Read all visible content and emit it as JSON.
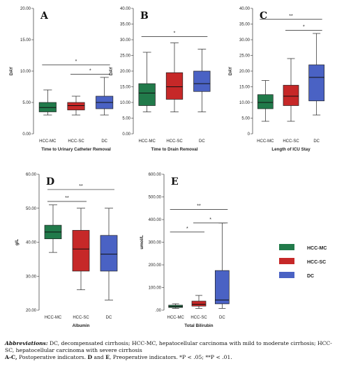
{
  "colors": {
    "HCC-MC": "#217a4a",
    "HCC-SC": "#c62828",
    "DC": "#4a62c4"
  },
  "legend": {
    "items": [
      {
        "label": "HCC-MC",
        "color": "#217a4a"
      },
      {
        "label": "HCC-SC",
        "color": "#c62828"
      },
      {
        "label": "DC",
        "color": "#4a62c4"
      }
    ]
  },
  "chart_data": [
    {
      "type": "box",
      "panel": "A",
      "categories": [
        "HCC-MC",
        "HCC-SC",
        "DC"
      ],
      "xlabel": "Time to Urinary Catheter Removal",
      "ylabel": "DAY",
      "ylim": [
        0,
        20
      ],
      "yticks": [
        "0.00",
        "5.00",
        "10.00",
        "15.00",
        "20.00"
      ],
      "ytick_values": [
        0,
        5,
        10,
        15,
        20
      ],
      "boxes": [
        {
          "min": 3,
          "q1": 3.5,
          "median": 4.2,
          "q3": 5,
          "max": 7
        },
        {
          "min": 3,
          "q1": 3.8,
          "median": 4.5,
          "q3": 5,
          "max": 6
        },
        {
          "min": 3,
          "q1": 4,
          "median": 5,
          "q3": 6,
          "max": 9
        }
      ],
      "significance": [
        {
          "from": 0,
          "to": 2,
          "label": "*",
          "y": 11
        },
        {
          "from": 1,
          "to": 2,
          "label": "*",
          "y": 9.5
        }
      ]
    },
    {
      "type": "box",
      "panel": "B",
      "categories": [
        "HCC-MC",
        "HCC-SC",
        "DC"
      ],
      "xlabel": "Time to Drain Removal",
      "ylabel": "DAY",
      "ylim": [
        0,
        40
      ],
      "yticks": [
        "0.00",
        "5.00",
        "10.00",
        "15.00",
        "20.00",
        "25.00",
        "30.00",
        "35.00",
        "40.00"
      ],
      "ytick_values": [
        0,
        5,
        10,
        15,
        20,
        25,
        30,
        35,
        40
      ],
      "boxes": [
        {
          "min": 7,
          "q1": 9,
          "median": 13,
          "q3": 16,
          "max": 26
        },
        {
          "min": 7,
          "q1": 11,
          "median": 15,
          "q3": 19.5,
          "max": 29
        },
        {
          "min": 7,
          "q1": 13.5,
          "median": 16,
          "q3": 20,
          "max": 27
        }
      ],
      "significance": [
        {
          "from": 0,
          "to": 2,
          "label": "*",
          "y": 31
        }
      ]
    },
    {
      "type": "box",
      "panel": "C",
      "categories": [
        "HCC-MC",
        "HCC-SC",
        "DC"
      ],
      "xlabel": "Length of ICU Stay",
      "ylabel": "DAY",
      "ylim": [
        0,
        40
      ],
      "yticks": [
        "0",
        "5.00",
        "10.00",
        "15.00",
        "20.00",
        "25.00",
        "30.00",
        "35.00",
        "40.00"
      ],
      "ytick_values": [
        0,
        5,
        10,
        15,
        20,
        25,
        30,
        35,
        40
      ],
      "boxes": [
        {
          "min": 4,
          "q1": 8,
          "median": 10,
          "q3": 12.5,
          "max": 17
        },
        {
          "min": 4,
          "q1": 9,
          "median": 12,
          "q3": 15.5,
          "max": 24
        },
        {
          "min": 6,
          "q1": 10.5,
          "median": 18,
          "q3": 22,
          "max": 32
        }
      ],
      "significance": [
        {
          "from": 0,
          "to": 2,
          "label": "**",
          "y": 36.5
        },
        {
          "from": 1,
          "to": 2,
          "label": "*",
          "y": 33
        }
      ]
    },
    {
      "type": "box",
      "panel": "D",
      "categories": [
        "HCC-MC",
        "HCC-SC",
        "DC"
      ],
      "xlabel": "Albumin",
      "ylabel": "g/L",
      "ylim": [
        20,
        60
      ],
      "yticks": [
        "20.00",
        "30.00",
        "40.00",
        "50.00",
        "60.00"
      ],
      "ytick_values": [
        20,
        30,
        40,
        50,
        60
      ],
      "boxes": [
        {
          "min": 37,
          "q1": 41,
          "median": 43,
          "q3": 45,
          "max": 51
        },
        {
          "min": 26,
          "q1": 31.5,
          "median": 38,
          "q3": 43.5,
          "max": 50
        },
        {
          "min": 23,
          "q1": 31.5,
          "median": 36.5,
          "q3": 42,
          "max": 50
        }
      ],
      "significance": [
        {
          "from": 0,
          "to": 2,
          "label": "**",
          "y": 55.5
        },
        {
          "from": 0,
          "to": 1,
          "label": "**",
          "y": 52
        }
      ]
    },
    {
      "type": "box",
      "panel": "E",
      "categories": [
        "HCC-MC",
        "HCC-SC",
        "DC"
      ],
      "xlabel": "Total Bilirubin",
      "ylabel": "umol/L",
      "ylim": [
        0,
        600
      ],
      "yticks": [
        ".00",
        "100.00",
        "200.00",
        "300.00",
        "400.00",
        "500.00",
        "600.00"
      ],
      "ytick_values": [
        0,
        100,
        200,
        300,
        400,
        500,
        600
      ],
      "boxes": [
        {
          "min": 8,
          "q1": 12,
          "median": 16,
          "q3": 22,
          "max": 28
        },
        {
          "min": 8,
          "q1": 18,
          "median": 26,
          "q3": 40,
          "max": 65
        },
        {
          "min": 8,
          "q1": 28,
          "median": 45,
          "q3": 175,
          "max": 385
        }
      ],
      "significance": [
        {
          "from": 0,
          "to": 2,
          "label": "**",
          "y": 445
        },
        {
          "from": 0,
          "to": 1,
          "label": "*",
          "y": 345
        },
        {
          "from": 1,
          "to": 2,
          "label": "*",
          "y": 385
        }
      ]
    }
  ],
  "caption": {
    "abbr_label": "Abbreviations:",
    "abbr_text": " DC, decompensated cirrhosis; HCC-MC, hepatocellular carcinoma with mild to moderate cirrhosis; HCC-SC, hepatocellular carcinoma with severe cirrhosis",
    "panels_ac": "A-C,",
    "panels_ac_text": " Postoperative indicators. ",
    "panels_de": "D",
    "and_word": " and ",
    "panel_e": "E",
    "panels_de_text": ", Preoperative indicators. *P < .05; **P < .01."
  }
}
